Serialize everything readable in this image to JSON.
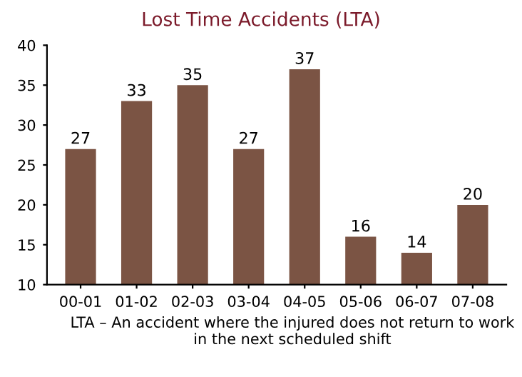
{
  "chart_data": {
    "type": "bar",
    "title": "Lost Time Accidents (LTA)",
    "categories": [
      "00-01",
      "01-02",
      "02-03",
      "03-04",
      "04-05",
      "05-06",
      "06-07",
      "07-08"
    ],
    "values": [
      27,
      33,
      35,
      27,
      37,
      16,
      14,
      20
    ],
    "color": "#7b5444",
    "ylim": [
      10,
      40
    ],
    "yticks": [
      10,
      15,
      20,
      25,
      30,
      35,
      40
    ],
    "data_labels": true,
    "annotations": [
      "LTA – An accident where the injured does not return to work in the next scheduled shift"
    ]
  }
}
